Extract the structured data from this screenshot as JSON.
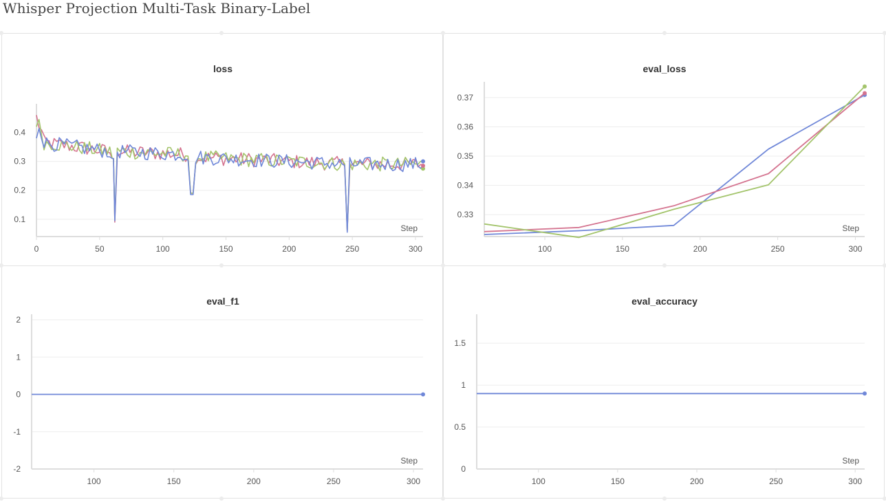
{
  "page": {
    "title": "Whisper Projection Multi-Task Binary-Label"
  },
  "colors": {
    "blue": "#6f87d8",
    "pink": "#d4738f",
    "green": "#a3c46b",
    "grid": "#ededed",
    "axis": "#dddddd",
    "tick_text": "#555555"
  },
  "chart_data": [
    {
      "id": "loss",
      "type": "line",
      "title": "loss",
      "xlabel": "Step",
      "xlim": [
        0,
        306
      ],
      "ylim": [
        0.04,
        0.48
      ],
      "xticks": [
        0,
        50,
        100,
        150,
        200,
        250,
        300
      ],
      "yticks": [
        0.1,
        0.2,
        0.3,
        0.4
      ],
      "ytick_labels": [
        "0.1",
        "0.2",
        "0.3",
        "0.4"
      ],
      "series": [
        {
          "color": "pink",
          "values": []
        },
        {
          "color": "green",
          "values": []
        },
        {
          "color": "blue",
          "values": []
        }
      ],
      "end_points": [
        {
          "color": "green",
          "x": 306,
          "y": 0.275
        },
        {
          "color": "pink",
          "x": 306,
          "y": 0.285
        },
        {
          "color": "blue",
          "x": 306,
          "y": 0.3
        }
      ]
    },
    {
      "id": "eval_loss",
      "type": "line",
      "title": "eval_loss",
      "xlabel": "Step",
      "xlim": [
        61,
        306
      ],
      "ylim": [
        0.3225,
        0.3735
      ],
      "xticks": [
        100,
        150,
        200,
        250,
        300
      ],
      "yticks": [
        0.33,
        0.34,
        0.35,
        0.36,
        0.37
      ],
      "ytick_labels": [
        "0.33",
        "0.34",
        "0.35",
        "0.36",
        "0.37"
      ],
      "series": [
        {
          "color": "blue",
          "x": [
            61,
            122,
            183,
            244,
            306
          ],
          "y": [
            0.3232,
            0.3245,
            0.3263,
            0.3524,
            0.3709
          ]
        },
        {
          "color": "pink",
          "x": [
            61,
            122,
            183,
            244,
            306
          ],
          "y": [
            0.3242,
            0.3256,
            0.333,
            0.344,
            0.3715
          ]
        },
        {
          "color": "green",
          "x": [
            61,
            122,
            183,
            244,
            306
          ],
          "y": [
            0.3268,
            0.3222,
            0.3318,
            0.3402,
            0.3738
          ]
        }
      ]
    },
    {
      "id": "eval_f1",
      "type": "line",
      "title": "eval_f1",
      "xlabel": "Step",
      "xlim": [
        61,
        306
      ],
      "ylim": [
        -2,
        2
      ],
      "xticks": [
        100,
        150,
        200,
        250,
        300
      ],
      "yticks": [
        -2,
        -1,
        0,
        1,
        2
      ],
      "ytick_labels": [
        "-2",
        "-1",
        "0",
        "1",
        "2"
      ],
      "series": [
        {
          "color": "blue",
          "x": [
            61,
            122,
            183,
            244,
            306
          ],
          "y": [
            0,
            0,
            0,
            0,
            0
          ]
        }
      ]
    },
    {
      "id": "eval_accuracy",
      "type": "line",
      "title": "eval_accuracy",
      "xlabel": "Step",
      "xlim": [
        61,
        306
      ],
      "ylim": [
        0,
        1.78
      ],
      "xticks": [
        100,
        150,
        200,
        250,
        300
      ],
      "yticks": [
        0,
        0.5,
        1,
        1.5
      ],
      "ytick_labels": [
        "0",
        "0.5",
        "1",
        "1.5"
      ],
      "series": [
        {
          "color": "blue",
          "x": [
            61,
            122,
            183,
            244,
            306
          ],
          "y": [
            0.9,
            0.9,
            0.9,
            0.9,
            0.9
          ]
        }
      ]
    }
  ]
}
